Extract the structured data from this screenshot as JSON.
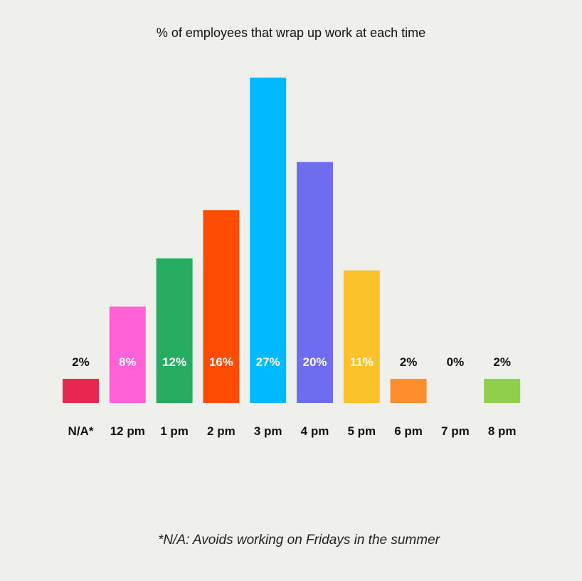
{
  "chart_data": {
    "type": "bar",
    "title": "% of employees that wrap up work at each time",
    "categories": [
      "N/A*",
      "12 pm",
      "1 pm",
      "2 pm",
      "3 pm",
      "4 pm",
      "5 pm",
      "6 pm",
      "7 pm",
      "8 pm"
    ],
    "values": [
      2,
      8,
      12,
      16,
      27,
      20,
      11,
      2,
      0,
      2
    ],
    "value_labels": [
      "2%",
      "8%",
      "12%",
      "16%",
      "27%",
      "20%",
      "11%",
      "2%",
      "0%",
      "2%"
    ],
    "colors": [
      "#e8274f",
      "#fe62d6",
      "#27ad62",
      "#fe4d02",
      "#01b9fe",
      "#6e6def",
      "#fbc22c",
      "#fe8d2b",
      "#ffffff",
      "#8fcf4c"
    ],
    "footnote": "*N/A: Avoids working on Fridays in the summer",
    "xlabel": "",
    "ylabel": "",
    "ylim": [
      0,
      27
    ],
    "grid": false,
    "legend": "none"
  },
  "colors": {
    "background": "#efefeb",
    "text": "#111111",
    "label_inside": "#ffffff"
  }
}
